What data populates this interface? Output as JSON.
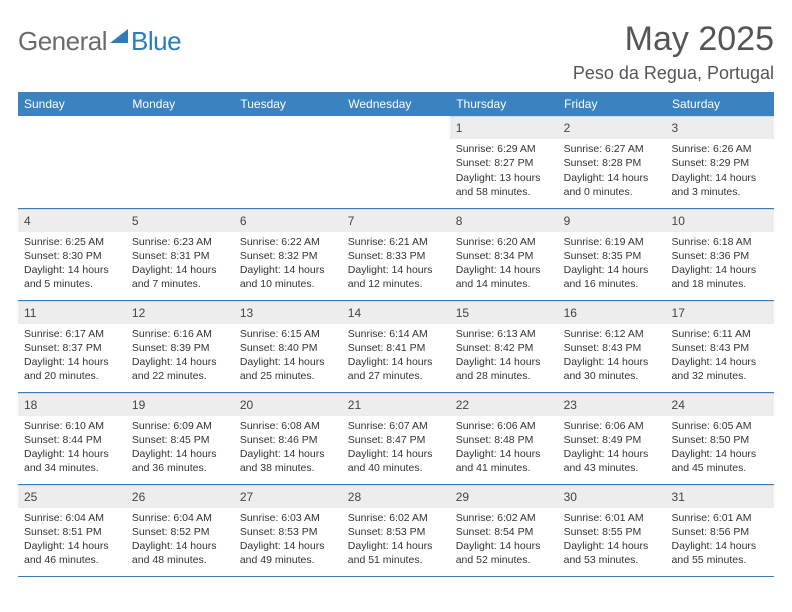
{
  "brand": {
    "left": "General",
    "right": "Blue"
  },
  "title": {
    "month": "May 2025",
    "location": "Peso da Regua, Portugal"
  },
  "colors": {
    "header_bg": "#3b83c0",
    "rule": "#3b7db5",
    "daynum_bg": "#ededed"
  },
  "weekdays": [
    "Sunday",
    "Monday",
    "Tuesday",
    "Wednesday",
    "Thursday",
    "Friday",
    "Saturday"
  ],
  "table": {
    "cols": 7,
    "lead_blanks": 4,
    "days": [
      {
        "n": "1",
        "sr": "Sunrise: 6:29 AM",
        "ss": "Sunset: 8:27 PM",
        "dl": "Daylight: 13 hours and 58 minutes."
      },
      {
        "n": "2",
        "sr": "Sunrise: 6:27 AM",
        "ss": "Sunset: 8:28 PM",
        "dl": "Daylight: 14 hours and 0 minutes."
      },
      {
        "n": "3",
        "sr": "Sunrise: 6:26 AM",
        "ss": "Sunset: 8:29 PM",
        "dl": "Daylight: 14 hours and 3 minutes."
      },
      {
        "n": "4",
        "sr": "Sunrise: 6:25 AM",
        "ss": "Sunset: 8:30 PM",
        "dl": "Daylight: 14 hours and 5 minutes."
      },
      {
        "n": "5",
        "sr": "Sunrise: 6:23 AM",
        "ss": "Sunset: 8:31 PM",
        "dl": "Daylight: 14 hours and 7 minutes."
      },
      {
        "n": "6",
        "sr": "Sunrise: 6:22 AM",
        "ss": "Sunset: 8:32 PM",
        "dl": "Daylight: 14 hours and 10 minutes."
      },
      {
        "n": "7",
        "sr": "Sunrise: 6:21 AM",
        "ss": "Sunset: 8:33 PM",
        "dl": "Daylight: 14 hours and 12 minutes."
      },
      {
        "n": "8",
        "sr": "Sunrise: 6:20 AM",
        "ss": "Sunset: 8:34 PM",
        "dl": "Daylight: 14 hours and 14 minutes."
      },
      {
        "n": "9",
        "sr": "Sunrise: 6:19 AM",
        "ss": "Sunset: 8:35 PM",
        "dl": "Daylight: 14 hours and 16 minutes."
      },
      {
        "n": "10",
        "sr": "Sunrise: 6:18 AM",
        "ss": "Sunset: 8:36 PM",
        "dl": "Daylight: 14 hours and 18 minutes."
      },
      {
        "n": "11",
        "sr": "Sunrise: 6:17 AM",
        "ss": "Sunset: 8:37 PM",
        "dl": "Daylight: 14 hours and 20 minutes."
      },
      {
        "n": "12",
        "sr": "Sunrise: 6:16 AM",
        "ss": "Sunset: 8:39 PM",
        "dl": "Daylight: 14 hours and 22 minutes."
      },
      {
        "n": "13",
        "sr": "Sunrise: 6:15 AM",
        "ss": "Sunset: 8:40 PM",
        "dl": "Daylight: 14 hours and 25 minutes."
      },
      {
        "n": "14",
        "sr": "Sunrise: 6:14 AM",
        "ss": "Sunset: 8:41 PM",
        "dl": "Daylight: 14 hours and 27 minutes."
      },
      {
        "n": "15",
        "sr": "Sunrise: 6:13 AM",
        "ss": "Sunset: 8:42 PM",
        "dl": "Daylight: 14 hours and 28 minutes."
      },
      {
        "n": "16",
        "sr": "Sunrise: 6:12 AM",
        "ss": "Sunset: 8:43 PM",
        "dl": "Daylight: 14 hours and 30 minutes."
      },
      {
        "n": "17",
        "sr": "Sunrise: 6:11 AM",
        "ss": "Sunset: 8:43 PM",
        "dl": "Daylight: 14 hours and 32 minutes."
      },
      {
        "n": "18",
        "sr": "Sunrise: 6:10 AM",
        "ss": "Sunset: 8:44 PM",
        "dl": "Daylight: 14 hours and 34 minutes."
      },
      {
        "n": "19",
        "sr": "Sunrise: 6:09 AM",
        "ss": "Sunset: 8:45 PM",
        "dl": "Daylight: 14 hours and 36 minutes."
      },
      {
        "n": "20",
        "sr": "Sunrise: 6:08 AM",
        "ss": "Sunset: 8:46 PM",
        "dl": "Daylight: 14 hours and 38 minutes."
      },
      {
        "n": "21",
        "sr": "Sunrise: 6:07 AM",
        "ss": "Sunset: 8:47 PM",
        "dl": "Daylight: 14 hours and 40 minutes."
      },
      {
        "n": "22",
        "sr": "Sunrise: 6:06 AM",
        "ss": "Sunset: 8:48 PM",
        "dl": "Daylight: 14 hours and 41 minutes."
      },
      {
        "n": "23",
        "sr": "Sunrise: 6:06 AM",
        "ss": "Sunset: 8:49 PM",
        "dl": "Daylight: 14 hours and 43 minutes."
      },
      {
        "n": "24",
        "sr": "Sunrise: 6:05 AM",
        "ss": "Sunset: 8:50 PM",
        "dl": "Daylight: 14 hours and 45 minutes."
      },
      {
        "n": "25",
        "sr": "Sunrise: 6:04 AM",
        "ss": "Sunset: 8:51 PM",
        "dl": "Daylight: 14 hours and 46 minutes."
      },
      {
        "n": "26",
        "sr": "Sunrise: 6:04 AM",
        "ss": "Sunset: 8:52 PM",
        "dl": "Daylight: 14 hours and 48 minutes."
      },
      {
        "n": "27",
        "sr": "Sunrise: 6:03 AM",
        "ss": "Sunset: 8:53 PM",
        "dl": "Daylight: 14 hours and 49 minutes."
      },
      {
        "n": "28",
        "sr": "Sunrise: 6:02 AM",
        "ss": "Sunset: 8:53 PM",
        "dl": "Daylight: 14 hours and 51 minutes."
      },
      {
        "n": "29",
        "sr": "Sunrise: 6:02 AM",
        "ss": "Sunset: 8:54 PM",
        "dl": "Daylight: 14 hours and 52 minutes."
      },
      {
        "n": "30",
        "sr": "Sunrise: 6:01 AM",
        "ss": "Sunset: 8:55 PM",
        "dl": "Daylight: 14 hours and 53 minutes."
      },
      {
        "n": "31",
        "sr": "Sunrise: 6:01 AM",
        "ss": "Sunset: 8:56 PM",
        "dl": "Daylight: 14 hours and 55 minutes."
      }
    ]
  }
}
